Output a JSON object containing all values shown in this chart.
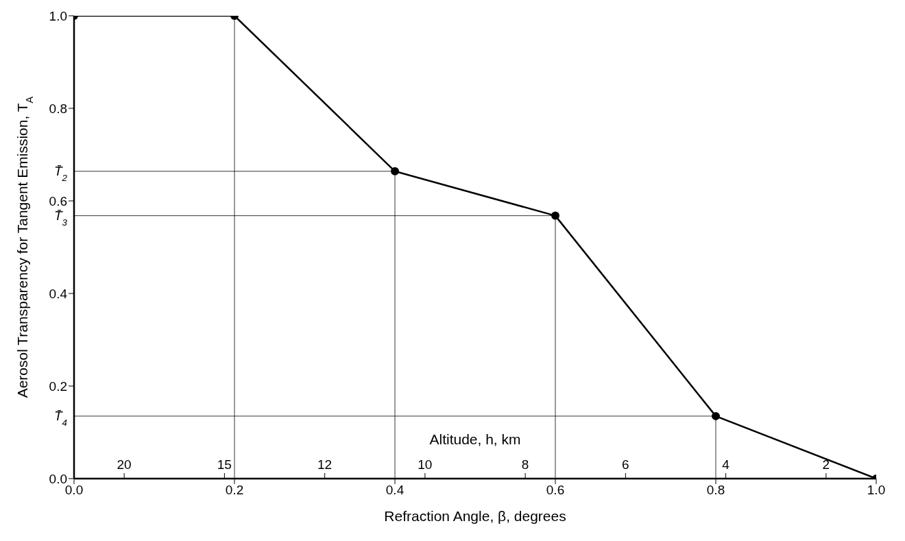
{
  "chart_data": {
    "type": "line",
    "xlabel": "Refraction Angle, β, degrees",
    "ylabel": "Aerosol Transparency for Tangent Emission, T$_{A}$",
    "x": [
      0,
      0.2,
      0.4,
      0.6,
      0.8,
      1.0
    ],
    "series": [
      {
        "color": "#000000",
        "values": [
          1,
          1,
          0.664,
          0.568,
          0.135,
          0
        ]
      }
    ],
    "xlim": [
      0,
      1
    ],
    "ylim": [
      0,
      1
    ],
    "xticks": [
      {
        "value": 0,
        "label": "0.0"
      },
      {
        "value": 0.2,
        "label": "0.2"
      },
      {
        "value": 0.4,
        "label": "0.4"
      },
      {
        "value": 0.6,
        "label": "0.6"
      },
      {
        "value": 0.8,
        "label": "0.8"
      },
      {
        "value": 1,
        "label": "1.0"
      }
    ],
    "yticks": [
      {
        "value": 0,
        "label": "0.0"
      },
      {
        "value": 0.2,
        "label": "0.2"
      },
      {
        "value": 0.4,
        "label": "0.4"
      },
      {
        "value": 0.6,
        "label": "0.6"
      },
      {
        "value": 0.8,
        "label": "0.8"
      },
      {
        "value": 1,
        "label": "1.0"
      }
    ],
    "annotations": [
      "Altitude, h, km",
      "20",
      "15",
      "12",
      "10",
      "8",
      "6",
      "4",
      "2"
    ],
    "marker": "circle",
    "line_style": "solid",
    "ref_lines": [
      {
        "axis": "x",
        "value": 0.2,
        "color": "#000000"
      },
      {
        "axis": "x",
        "value": 0.4,
        "color": "#000000"
      },
      {
        "axis": "x",
        "value": 0.6,
        "color": "#000000"
      },
      {
        "axis": "x",
        "value": 0.8,
        "color": "#000000"
      },
      {
        "axis": "y",
        "value": 0.664,
        "label": "T̄$_{2}$",
        "color": "#000000"
      },
      {
        "axis": "y",
        "value": 0.568,
        "label": "T̄$_{3}$",
        "color": "#000000"
      },
      {
        "axis": "y",
        "value": 0.135,
        "label": "T̄$_{4}$",
        "color": "#000000"
      }
    ]
  }
}
